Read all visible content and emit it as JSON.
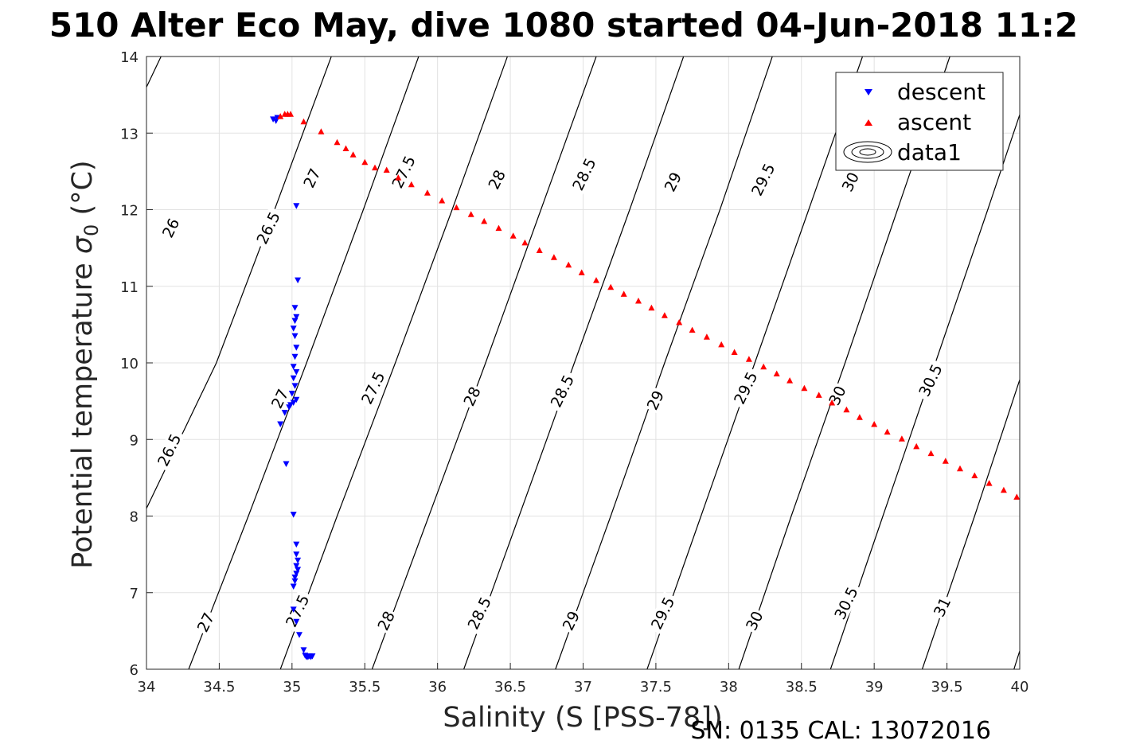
{
  "title": "510 Alter Eco May, dive 1080 started 04-Jun-2018 11:2",
  "footer": "SN: 0135  CAL: 13072016",
  "colors": {
    "descent": "#0000ff",
    "ascent": "#ff0000",
    "contour": "#000000",
    "grid": "#e2e2e2"
  },
  "chart_data": {
    "type": "scatter",
    "xlabel": "Salinity (S [PSS-78])",
    "ylabel_main": "Potential temperature ",
    "ylabel_sigma": "σ",
    "ylabel_sub": "0",
    "ylabel_unit": " (°C)",
    "xlim": [
      34,
      40
    ],
    "ylim": [
      6,
      14
    ],
    "xticks": [
      "34",
      "34.5",
      "35",
      "35.5",
      "36",
      "36.5",
      "37",
      "37.5",
      "38",
      "38.5",
      "39",
      "39.5",
      "40"
    ],
    "yticks": [
      "6",
      "7",
      "8",
      "9",
      "10",
      "11",
      "12",
      "13",
      "14"
    ],
    "grid": true,
    "legend": {
      "placement": "top-right",
      "entries": [
        "descent",
        "ascent",
        "data1"
      ]
    },
    "contours": {
      "lines": [
        [
          [
            34.0,
            13.6
          ],
          [
            34.1,
            14.0
          ]
        ],
        [
          [
            34.0,
            8.1
          ],
          [
            34.48,
            10.0
          ],
          [
            34.88,
            12.0
          ],
          [
            35.27,
            14.0
          ]
        ],
        [
          [
            34.29,
            6.0
          ],
          [
            34.7,
            8.0
          ],
          [
            35.1,
            10.0
          ],
          [
            35.49,
            12.0
          ],
          [
            35.87,
            14.0
          ]
        ],
        [
          [
            34.92,
            6.0
          ],
          [
            35.31,
            8.0
          ],
          [
            35.71,
            10.0
          ],
          [
            36.1,
            12.0
          ],
          [
            36.48,
            14.0
          ]
        ],
        [
          [
            35.55,
            6.0
          ],
          [
            35.94,
            8.0
          ],
          [
            36.33,
            10.0
          ],
          [
            36.71,
            12.0
          ],
          [
            37.09,
            14.0
          ]
        ],
        [
          [
            36.18,
            6.0
          ],
          [
            36.56,
            8.0
          ],
          [
            36.94,
            10.0
          ],
          [
            37.32,
            12.0
          ],
          [
            37.69,
            14.0
          ]
        ],
        [
          [
            36.81,
            6.0
          ],
          [
            37.19,
            8.0
          ],
          [
            37.56,
            10.0
          ],
          [
            37.94,
            12.0
          ],
          [
            38.3,
            14.0
          ]
        ],
        [
          [
            37.44,
            6.0
          ],
          [
            37.81,
            8.0
          ],
          [
            38.18,
            10.0
          ],
          [
            38.55,
            12.0
          ],
          [
            38.92,
            14.0
          ]
        ],
        [
          [
            38.07,
            6.0
          ],
          [
            38.43,
            8.0
          ],
          [
            38.8,
            10.0
          ],
          [
            39.16,
            12.0
          ],
          [
            39.52,
            14.0
          ]
        ],
        [
          [
            38.7,
            6.0
          ],
          [
            39.06,
            8.0
          ],
          [
            39.42,
            10.0
          ],
          [
            39.78,
            12.0
          ],
          [
            40.0,
            13.24
          ]
        ],
        [
          [
            39.33,
            6.0
          ],
          [
            39.69,
            8.0
          ],
          [
            40.0,
            9.78
          ]
        ],
        [
          [
            39.96,
            6.0
          ],
          [
            40.0,
            6.24
          ]
        ]
      ],
      "labels": [
        {
          "text": "26",
          "s": 34.18,
          "t": 11.75
        },
        {
          "text": "26.5",
          "s": 34.85,
          "t": 11.75
        },
        {
          "text": "27",
          "s": 35.15,
          "t": 12.4
        },
        {
          "text": "27.5",
          "s": 35.78,
          "t": 12.48
        },
        {
          "text": "28",
          "s": 36.42,
          "t": 12.38
        },
        {
          "text": "28.5",
          "s": 37.02,
          "t": 12.45
        },
        {
          "text": "29",
          "s": 37.63,
          "t": 12.35
        },
        {
          "text": "29.5",
          "s": 38.25,
          "t": 12.38
        },
        {
          "text": "30",
          "s": 38.85,
          "t": 12.35
        },
        {
          "text": "26.5",
          "s": 34.17,
          "t": 8.85
        },
        {
          "text": "27",
          "s": 34.93,
          "t": 9.52
        },
        {
          "text": "27.5",
          "s": 35.57,
          "t": 9.66
        },
        {
          "text": "28",
          "s": 36.25,
          "t": 9.55
        },
        {
          "text": "28.5",
          "s": 36.87,
          "t": 9.62
        },
        {
          "text": "29",
          "s": 37.51,
          "t": 9.5
        },
        {
          "text": "29.5",
          "s": 38.13,
          "t": 9.66
        },
        {
          "text": "30",
          "s": 38.76,
          "t": 9.56
        },
        {
          "text": "30.5",
          "s": 39.4,
          "t": 9.76
        },
        {
          "text": "27",
          "s": 34.42,
          "t": 6.6
        },
        {
          "text": "27.5",
          "s": 35.05,
          "t": 6.75
        },
        {
          "text": "28",
          "s": 35.66,
          "t": 6.62
        },
        {
          "text": "28.5",
          "s": 36.3,
          "t": 6.72
        },
        {
          "text": "29",
          "s": 36.93,
          "t": 6.62
        },
        {
          "text": "29.5",
          "s": 37.56,
          "t": 6.72
        },
        {
          "text": "30",
          "s": 38.19,
          "t": 6.62
        },
        {
          "text": "30.5",
          "s": 38.82,
          "t": 6.85
        },
        {
          "text": "31",
          "s": 39.48,
          "t": 6.8
        }
      ]
    },
    "series": [
      {
        "name": "descent",
        "marker": "triangle-down",
        "points": [
          [
            34.87,
            13.18
          ],
          [
            34.89,
            13.16
          ],
          [
            34.9,
            13.2
          ],
          [
            35.03,
            12.05
          ],
          [
            35.04,
            11.08
          ],
          [
            35.02,
            10.72
          ],
          [
            35.03,
            10.6
          ],
          [
            35.02,
            10.55
          ],
          [
            35.01,
            10.45
          ],
          [
            35.02,
            10.35
          ],
          [
            35.03,
            10.2
          ],
          [
            35.02,
            10.08
          ],
          [
            35.01,
            9.95
          ],
          [
            35.03,
            9.88
          ],
          [
            35.01,
            9.8
          ],
          [
            35.02,
            9.7
          ],
          [
            35.0,
            9.6
          ],
          [
            35.03,
            9.52
          ],
          [
            35.01,
            9.48
          ],
          [
            34.99,
            9.45
          ],
          [
            34.98,
            9.42
          ],
          [
            34.95,
            9.35
          ],
          [
            34.92,
            9.2
          ],
          [
            34.96,
            8.68
          ],
          [
            35.01,
            8.02
          ],
          [
            35.03,
            7.63
          ],
          [
            35.03,
            7.5
          ],
          [
            35.04,
            7.42
          ],
          [
            35.03,
            7.35
          ],
          [
            35.04,
            7.3
          ],
          [
            35.03,
            7.25
          ],
          [
            35.02,
            7.2
          ],
          [
            35.02,
            7.15
          ],
          [
            35.01,
            7.08
          ],
          [
            35.01,
            6.78
          ],
          [
            35.03,
            6.62
          ],
          [
            35.05,
            6.45
          ],
          [
            35.08,
            6.25
          ],
          [
            35.09,
            6.18
          ],
          [
            35.1,
            6.16
          ],
          [
            35.11,
            6.16
          ],
          [
            35.12,
            6.17
          ],
          [
            35.13,
            6.16
          ],
          [
            35.14,
            6.17
          ]
        ]
      },
      {
        "name": "ascent",
        "marker": "triangle-up",
        "points": [
          [
            34.92,
            13.22
          ],
          [
            34.95,
            13.25
          ],
          [
            34.97,
            13.25
          ],
          [
            34.99,
            13.25
          ],
          [
            35.08,
            13.15
          ],
          [
            35.2,
            13.02
          ],
          [
            35.31,
            12.88
          ],
          [
            35.37,
            12.8
          ],
          [
            35.42,
            12.72
          ],
          [
            35.5,
            12.62
          ],
          [
            35.57,
            12.55
          ],
          [
            35.65,
            12.52
          ],
          [
            35.73,
            12.42
          ],
          [
            35.82,
            12.33
          ],
          [
            35.93,
            12.22
          ],
          [
            36.03,
            12.12
          ],
          [
            36.13,
            12.03
          ],
          [
            36.23,
            11.94
          ],
          [
            36.32,
            11.85
          ],
          [
            36.42,
            11.76
          ],
          [
            36.52,
            11.66
          ],
          [
            36.6,
            11.57
          ],
          [
            36.7,
            11.47
          ],
          [
            36.8,
            11.38
          ],
          [
            36.9,
            11.28
          ],
          [
            36.99,
            11.18
          ],
          [
            37.09,
            11.08
          ],
          [
            37.19,
            10.99
          ],
          [
            37.28,
            10.9
          ],
          [
            37.38,
            10.81
          ],
          [
            37.47,
            10.72
          ],
          [
            37.56,
            10.62
          ],
          [
            37.66,
            10.53
          ],
          [
            37.75,
            10.43
          ],
          [
            37.85,
            10.34
          ],
          [
            37.95,
            10.24
          ],
          [
            38.04,
            10.14
          ],
          [
            38.14,
            10.05
          ],
          [
            38.24,
            9.95
          ],
          [
            38.33,
            9.86
          ],
          [
            38.42,
            9.77
          ],
          [
            38.52,
            9.67
          ],
          [
            38.62,
            9.58
          ],
          [
            38.71,
            9.48
          ],
          [
            38.81,
            9.39
          ],
          [
            38.9,
            9.29
          ],
          [
            39.0,
            9.2
          ],
          [
            39.09,
            9.1
          ],
          [
            39.19,
            9.01
          ],
          [
            39.29,
            8.91
          ],
          [
            39.39,
            8.82
          ],
          [
            39.49,
            8.72
          ],
          [
            39.59,
            8.62
          ],
          [
            39.69,
            8.53
          ],
          [
            39.79,
            8.43
          ],
          [
            39.89,
            8.34
          ],
          [
            39.98,
            8.25
          ]
        ]
      }
    ]
  }
}
